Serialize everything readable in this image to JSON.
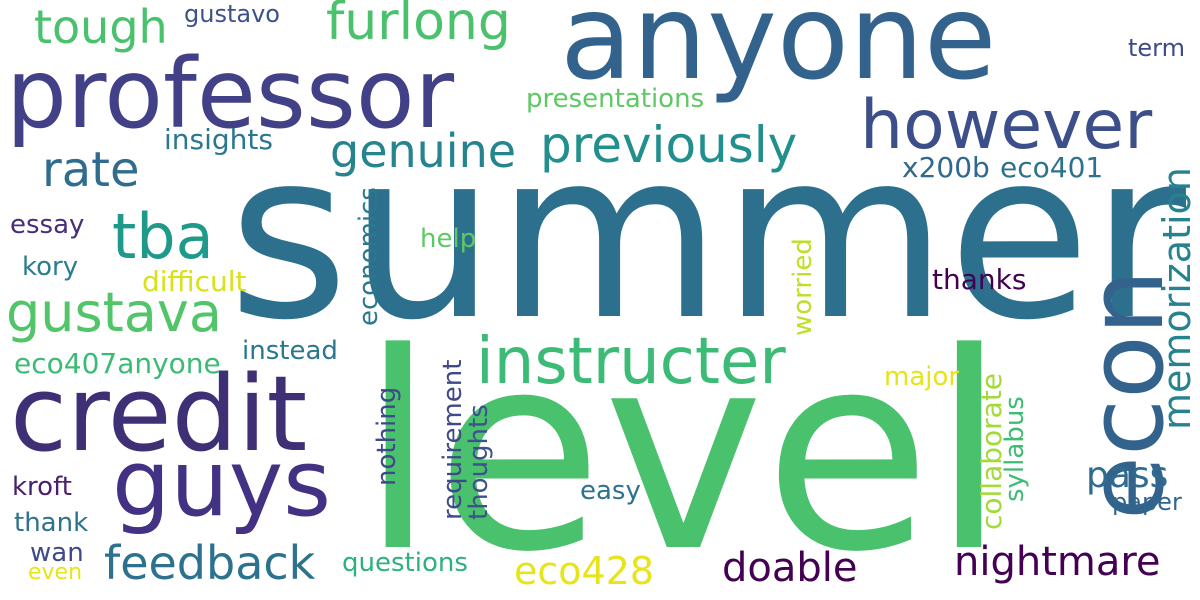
{
  "words": {
    "summer": "summer",
    "level": "level",
    "anyone": "anyone",
    "professor": "professor",
    "credit": "credit",
    "econ": "econ",
    "guys": "guys",
    "instructer": "instructer",
    "however": "however",
    "furlong": "furlong",
    "previously": "previously",
    "genuine": "genuine",
    "gustava": "gustava",
    "tba": "tba",
    "tough": "tough",
    "rate": "rate",
    "feedback": "feedback",
    "nightmare": "nightmare",
    "memorization": "memorization",
    "doable": "doable",
    "eco428": "eco428",
    "pass": "pass",
    "presentations": "presentations",
    "insights": "insights",
    "x200b": "x200b",
    "eco401": "eco401",
    "eco407anyone": "eco407anyone",
    "difficult": "difficult",
    "instead": "instead",
    "thanks": "thanks",
    "major": "major",
    "worried": "worried",
    "economics": "economics",
    "help": "help",
    "essay": "essay",
    "kory": "kory",
    "kroft": "kroft",
    "thank": "thank",
    "wan": "wan",
    "even": "even",
    "questions": "questions",
    "easy": "easy",
    "collaborate": "collaborate",
    "syllabus": "syllabus",
    "requirement": "requirement",
    "thoughts": "thoughts",
    "nothing": "nothing",
    "paper": "paper",
    "term": "term",
    "gustavo": "gustavo"
  }
}
